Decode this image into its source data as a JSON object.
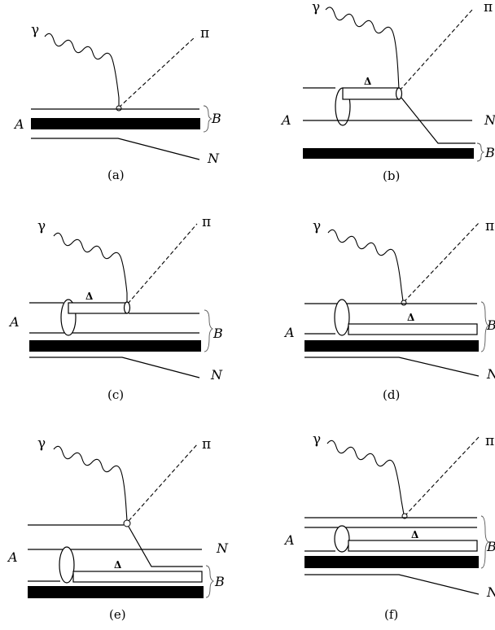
{
  "labels": {
    "photon": "γ",
    "pion": "π",
    "nucleus_A": "A",
    "residual_B": "B",
    "nucleon_N": "N",
    "delta": "Δ"
  },
  "captions": {
    "a": "(a)",
    "b": "(b)",
    "c": "(c)",
    "d": "(d)",
    "e": "(e)",
    "f": "(f)"
  }
}
